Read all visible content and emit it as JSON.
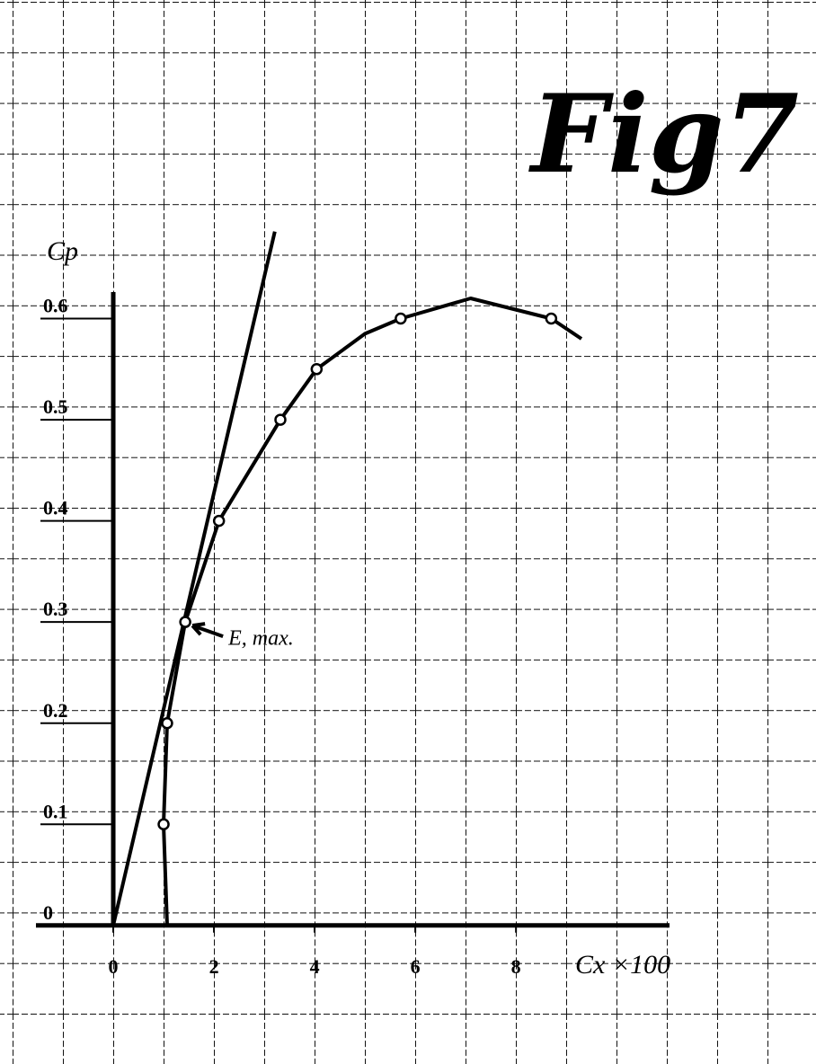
{
  "chart_data": {
    "type": "line",
    "title": "Fig7",
    "ylabel": "Cp",
    "xlabel": "Cx ×100",
    "annotation": "E, max.",
    "annotation_at": [
      1.43,
      0.3
    ],
    "xlim": [
      -2.25,
      13.96
    ],
    "ylim": [
      -0.137,
      0.915
    ],
    "xticks": [
      0,
      2,
      4,
      6,
      8
    ],
    "yticks": [
      0,
      0.1,
      0.2,
      0.3,
      0.4,
      0.5,
      0.6
    ],
    "color": "#000000",
    "series": [
      {
        "mode": "line",
        "x": [
          1.07,
          1.0,
          1.07,
          1.43,
          2.1,
          3.32,
          4.04,
          5.0,
          5.71,
          7.1,
          8.7,
          9.3
        ],
        "values": [
          0,
          0.1,
          0.2,
          0.3,
          0.4,
          0.5,
          0.55,
          0.585,
          0.6,
          0.62,
          0.6,
          0.58
        ]
      },
      {
        "mode": "markers",
        "x": [
          1.0,
          1.07,
          1.43,
          2.1,
          3.32,
          4.04,
          5.71,
          8.7
        ],
        "values": [
          0.1,
          0.2,
          0.3,
          0.4,
          0.5,
          0.55,
          0.6,
          0.6
        ]
      },
      {
        "mode": "line",
        "x": [
          0,
          3.21
        ],
        "values": [
          0,
          0.686
        ]
      }
    ]
  }
}
